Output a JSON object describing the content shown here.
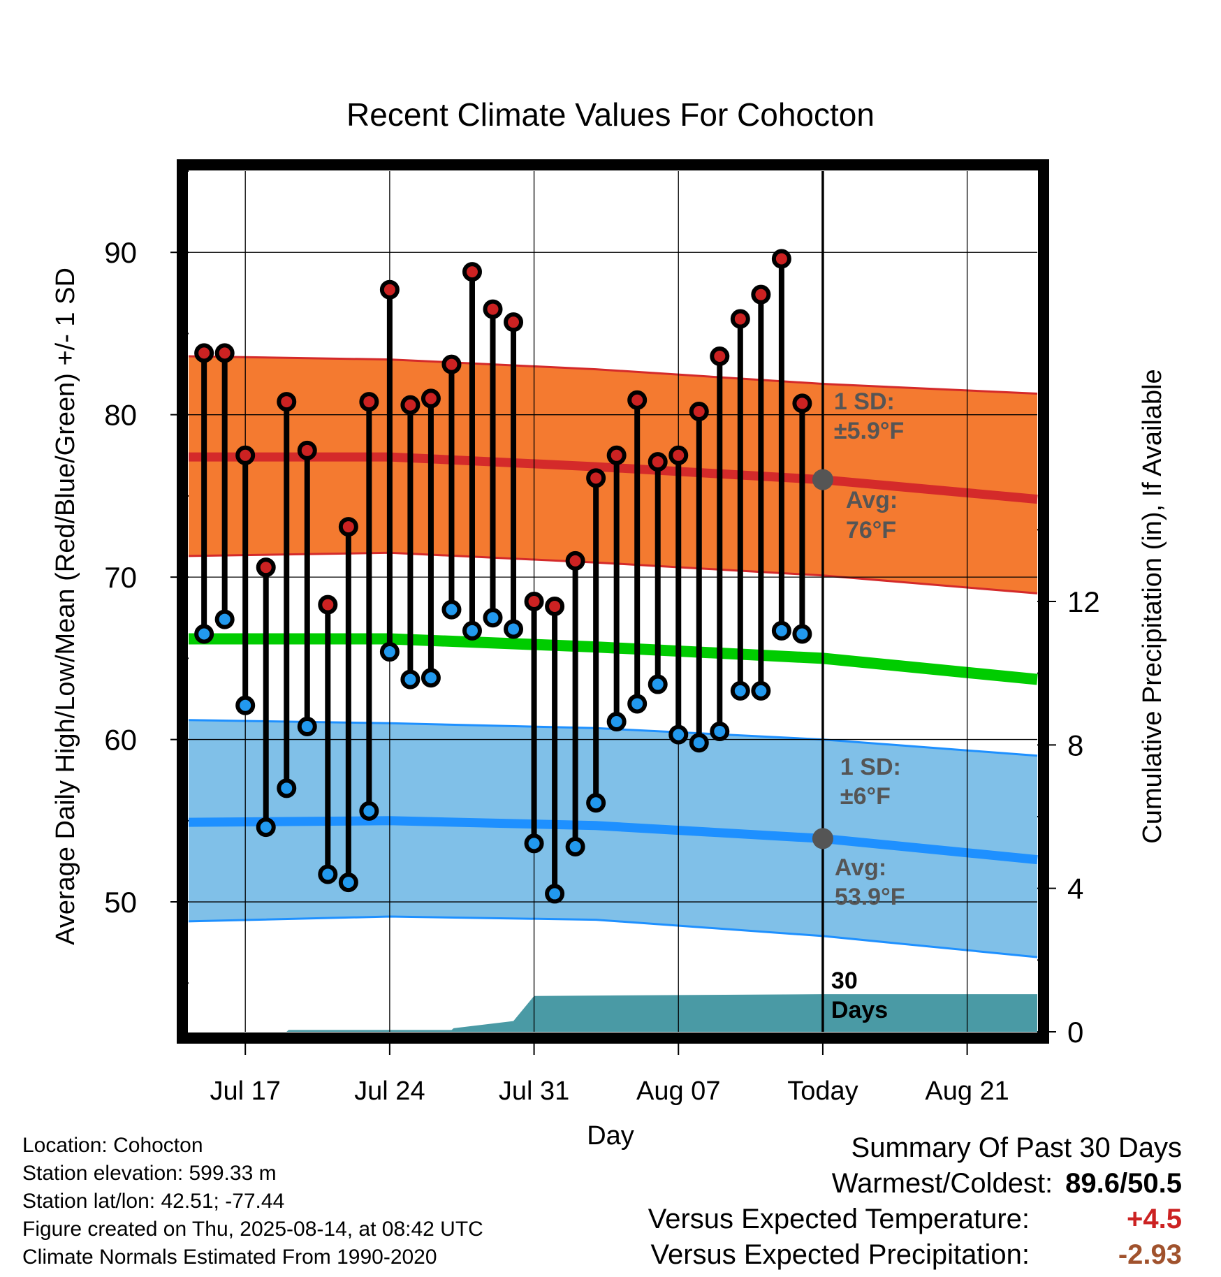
{
  "chart_data": {
    "type": "line",
    "title": "Recent Climate Values For Cohocton",
    "xlabel": "Day",
    "ylabel": "Average Daily High/Low/Mean (Red/Blue/Green) +/- 1 SD",
    "y2label": "Cumulative Precipitation (in), If Available",
    "ylim": [
      42,
      95
    ],
    "y2lim": [
      0,
      24
    ],
    "yticks": [
      "50",
      "60",
      "70",
      "80",
      "90"
    ],
    "y2ticks": [
      "0",
      "4",
      "8",
      "12"
    ],
    "x_tick_labels": [
      {
        "day": 3,
        "label": "Jul 17"
      },
      {
        "day": 10,
        "label": "Jul 24"
      },
      {
        "day": 17,
        "label": "Jul 31"
      },
      {
        "day": 24,
        "label": "Aug 07"
      },
      {
        "day": 31,
        "label": "Today"
      },
      {
        "day": 38,
        "label": "Aug 21"
      }
    ],
    "xlim": [
      0.25,
      41.4
    ],
    "grid": true,
    "daily": {
      "days": [
        1,
        2,
        3,
        4,
        5,
        6,
        7,
        8,
        9,
        10,
        11,
        12,
        13,
        14,
        15,
        16,
        17,
        18,
        19,
        20,
        21,
        22,
        23,
        24,
        25,
        26,
        27,
        28,
        29,
        30
      ],
      "high": [
        83.8,
        83.8,
        77.5,
        70.6,
        80.8,
        77.8,
        68.3,
        73.1,
        80.8,
        87.7,
        80.6,
        81.0,
        83.1,
        88.8,
        86.5,
        85.7,
        68.5,
        68.2,
        71.0,
        76.1,
        77.5,
        80.9,
        77.1,
        77.5,
        80.2,
        83.6,
        85.9,
        87.4,
        89.6,
        80.7
      ],
      "low": [
        66.5,
        67.4,
        62.1,
        54.6,
        57.0,
        60.8,
        51.7,
        51.2,
        55.6,
        65.4,
        63.7,
        63.8,
        68.0,
        66.7,
        67.5,
        66.8,
        53.6,
        50.5,
        53.4,
        56.1,
        61.1,
        62.2,
        63.4,
        60.3,
        59.8,
        60.5,
        63.0,
        63.0,
        66.7,
        66.5
      ]
    },
    "normals": {
      "days": [
        0.25,
        10,
        20,
        31,
        41.4
      ],
      "high_mean": [
        77.4,
        77.4,
        76.8,
        76.0,
        74.8
      ],
      "high_upper": [
        83.6,
        83.4,
        82.8,
        81.9,
        81.3
      ],
      "high_lower": [
        71.3,
        71.5,
        70.9,
        70.1,
        69.0
      ],
      "mid_mean": [
        66.2,
        66.2,
        65.7,
        65.0,
        63.7
      ],
      "low_mean": [
        54.9,
        55.0,
        54.7,
        53.9,
        52.6
      ],
      "low_upper": [
        61.2,
        61.0,
        60.7,
        60.0,
        59.0
      ],
      "low_lower": [
        48.8,
        49.1,
        48.9,
        47.9,
        46.6
      ]
    },
    "precipitation": {
      "days": [
        0.25,
        5,
        5.1,
        13,
        13.1,
        16,
        17,
        31,
        41.4
      ],
      "values": [
        0,
        0,
        0.05,
        0.05,
        0.1,
        0.3,
        1.0,
        1.05,
        1.05
      ]
    },
    "annotations": {
      "high_sd_line1": "1 SD:",
      "high_sd_line2": "±5.9°F",
      "high_avg_line1": "Avg:",
      "high_avg_line2": "76°F",
      "low_sd_line1": "1 SD:",
      "low_sd_line2": "±6°F",
      "low_avg_line1": "Avg:",
      "low_avg_line2": "53.9°F",
      "window_line1": "30",
      "window_line2": "Days"
    },
    "colors": {
      "high_band": "#f47a30",
      "high_line": "#d42a2a",
      "low_band": "#80c0e8",
      "low_line": "#1e90ff",
      "mean_line": "#00cc00",
      "precip": "#4a9aa5",
      "high_marker": "#cc2222",
      "low_marker": "#2299ee",
      "annotation_text": "#555555"
    }
  },
  "footer": {
    "location": "Location: Cohocton",
    "elevation": "Station elevation: 599.33 m",
    "latlon": "Station lat/lon: 42.51; -77.44",
    "created": "Figure created on Thu, 2025-08-14, at 08:42 UTC",
    "normals": "Climate Normals Estimated From 1990-2020"
  },
  "summary": {
    "title": "Summary Of Past 30 Days",
    "warm_cold_label": "Warmest/Coldest:",
    "warm_cold_value": "89.6/50.5",
    "temp_label": "Versus Expected Temperature:",
    "temp_value": "+4.5",
    "temp_color": "#cc2222",
    "precip_label": "Versus Expected Precipitation:",
    "precip_value": "-2.93",
    "precip_color": "#a0522d"
  }
}
